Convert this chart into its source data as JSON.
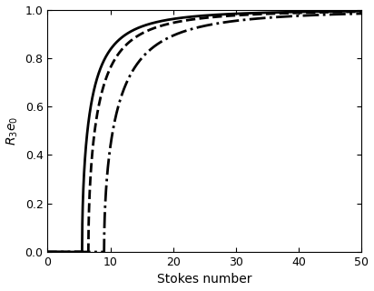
{
  "title": "",
  "xlabel": "Stokes number",
  "ylabel": "$R_3 e_0$",
  "xlim": [
    0,
    50
  ],
  "ylim": [
    0,
    1
  ],
  "xticks": [
    0,
    10,
    20,
    30,
    40,
    50
  ],
  "yticks": [
    0,
    0.2,
    0.4,
    0.6,
    0.8,
    1.0
  ],
  "curves": [
    {
      "St_c": 5.5,
      "St_shift": 5.5,
      "style": "solid",
      "color": "black",
      "linewidth": 2.0
    },
    {
      "St_c": 6.5,
      "St_shift": 6.5,
      "style": "dashed",
      "color": "black",
      "linewidth": 2.0
    },
    {
      "St_c": 9.0,
      "St_shift": 9.0,
      "style": "dashdot",
      "color": "black",
      "linewidth": 2.0
    }
  ],
  "background_color": "#ffffff",
  "figsize": [
    4.12,
    3.2
  ],
  "dpi": 100
}
